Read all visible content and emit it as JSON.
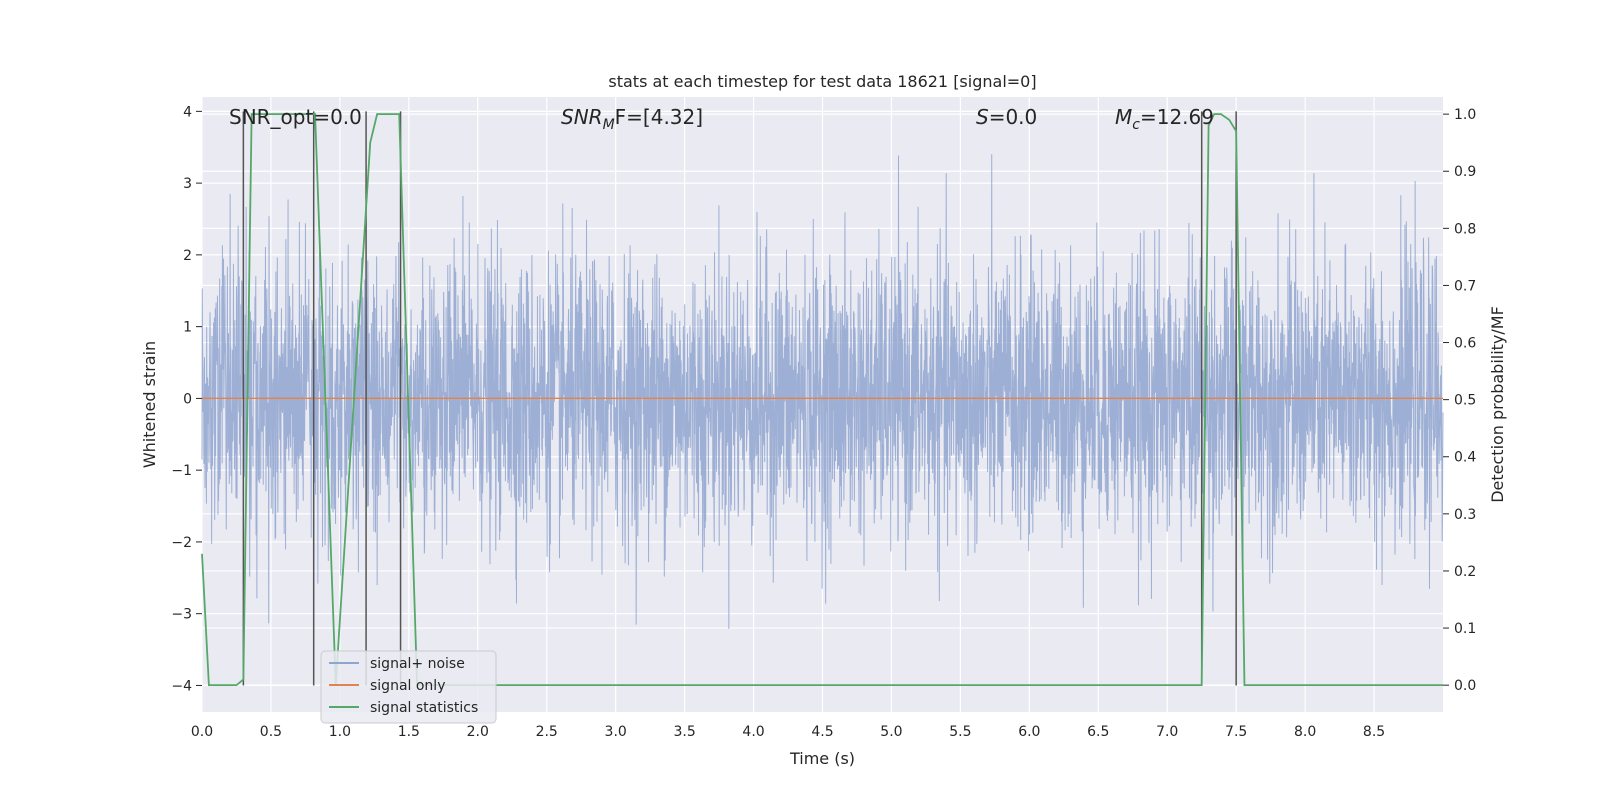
{
  "chart_data": {
    "type": "line",
    "title": "stats at each timestep for test data 18621 [signal=0]",
    "xlabel": "Time (s)",
    "ylabel_left": "Whitened strain",
    "ylabel_right": "Detection probability/MF",
    "xlim": [
      0.0,
      9.0
    ],
    "ylim_left": [
      -4.37,
      4.2
    ],
    "ylim_right": [
      -0.047,
      1.03
    ],
    "x_ticks": [
      "0.0",
      "0.5",
      "1.0",
      "1.5",
      "2.0",
      "2.5",
      "3.0",
      "3.5",
      "4.0",
      "4.5",
      "5.0",
      "5.5",
      "6.0",
      "6.5",
      "7.0",
      "7.5",
      "8.0",
      "8.5"
    ],
    "x_tick_values": [
      0.0,
      0.5,
      1.0,
      1.5,
      2.0,
      2.5,
      3.0,
      3.5,
      4.0,
      4.5,
      5.0,
      5.5,
      6.0,
      6.5,
      7.0,
      7.5,
      8.0,
      8.5
    ],
    "y_left_ticks": [
      "−4",
      "−3",
      "−2",
      "−1",
      "0",
      "1",
      "2",
      "3",
      "4"
    ],
    "y_left_tick_values": [
      -4,
      -3,
      -2,
      -1,
      0,
      1,
      2,
      3,
      4
    ],
    "y_right_ticks": [
      "0.0",
      "0.1",
      "0.2",
      "0.3",
      "0.4",
      "0.5",
      "0.6",
      "0.7",
      "0.8",
      "0.9",
      "1.0"
    ],
    "y_right_tick_values": [
      0.0,
      0.1,
      0.2,
      0.3,
      0.4,
      0.5,
      0.6,
      0.7,
      0.8,
      0.9,
      1.0
    ],
    "grid": true,
    "legend_position": "lower-left",
    "annotations": {
      "snr_opt": "SNR_opt=0.0",
      "snr_mf_main": "SNR",
      "snr_mf_sub": "M",
      "snr_mf_rest": "F=[4.32]",
      "s_main": "S",
      "s_rest": "=0.0",
      "mc_main": "M",
      "mc_sub": "c",
      "mc_rest": "=12.69"
    },
    "series": [
      {
        "name": "signal+ noise",
        "color": "#8fa5cf",
        "axis": "left",
        "description_values": {
          "duration_s": 9.0,
          "typical_amplitude": 1.0,
          "peak_max": 3.8,
          "peak_min": -3.5
        }
      },
      {
        "name": "signal only",
        "color": "#dd8452",
        "axis": "left",
        "x": [
          0.0,
          9.0
        ],
        "y": [
          0.0,
          0.0
        ]
      },
      {
        "name": "signal statistics",
        "color": "#55a868",
        "axis": "right",
        "x": [
          0.0,
          0.05,
          0.25,
          0.3,
          0.36,
          0.82,
          0.97,
          1.22,
          1.27,
          1.43,
          1.56,
          7.25,
          7.3,
          7.34,
          7.39,
          7.45,
          7.5,
          7.56,
          9.0
        ],
        "y": [
          0.23,
          0.0,
          0.0,
          0.01,
          1.0,
          1.0,
          0.0,
          0.95,
          1.0,
          1.0,
          0.0,
          0.0,
          0.98,
          1.0,
          1.0,
          0.99,
          0.97,
          0.0,
          0.0
        ]
      }
    ],
    "vertical_markers": [
      0.3,
      0.81,
      1.19,
      1.44,
      7.25,
      7.5
    ],
    "vertical_marker_color": "#555555"
  }
}
